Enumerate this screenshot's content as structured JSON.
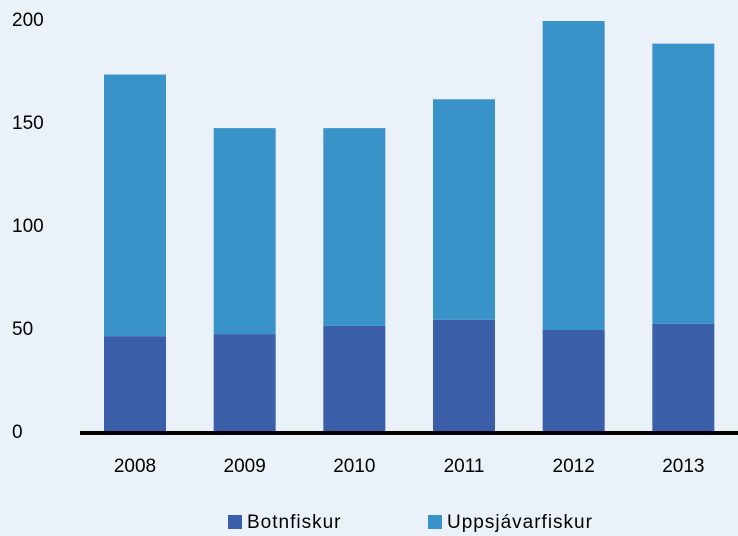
{
  "chart_data": {
    "type": "stacked_bar",
    "categories": [
      "2008",
      "2009",
      "2010",
      "2011",
      "2012",
      "2013"
    ],
    "series": [
      {
        "name": "Botnfiskur",
        "color": "#3a5fa8",
        "values": [
          47,
          48,
          52,
          55,
          50,
          53
        ]
      },
      {
        "name": "Uppsjávarfiskur",
        "color": "#3993c8",
        "values": [
          127,
          100,
          96,
          107,
          150,
          136
        ]
      }
    ],
    "ylim": [
      0,
      200
    ],
    "yticks": [
      0,
      50,
      100,
      150,
      200
    ],
    "grid": false,
    "legend": "bottom"
  }
}
